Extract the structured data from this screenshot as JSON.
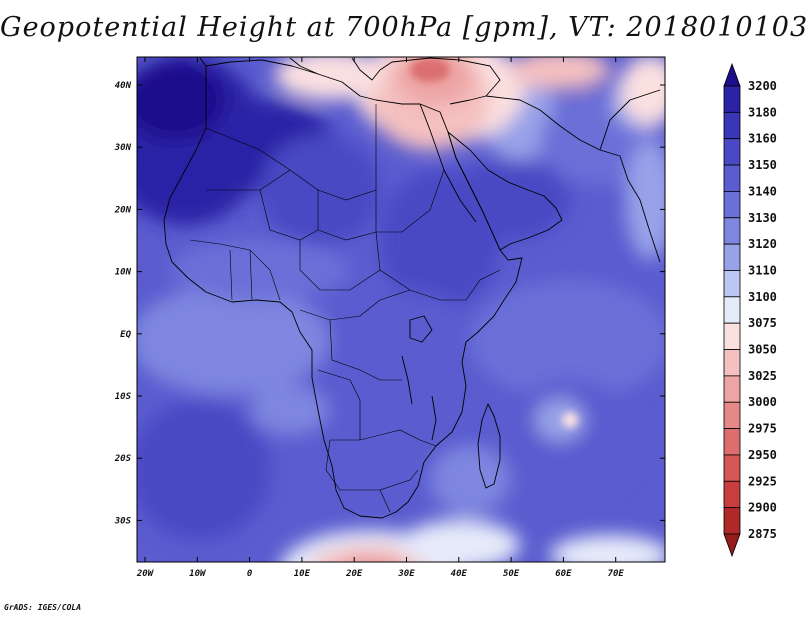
{
  "title": "Geopotential Height at 700hPa [gpm], VT: 2018010103",
  "credit": "GrADS: IGES/COLA",
  "lon_labels": [
    "20W",
    "10W",
    "0",
    "10E",
    "20E",
    "30E",
    "40E",
    "50E",
    "60E",
    "70E"
  ],
  "lat_labels": [
    "40N",
    "30N",
    "20N",
    "10N",
    "EQ",
    "10S",
    "20S",
    "30S"
  ],
  "colorbar": {
    "levels": [
      "3200",
      "3180",
      "3160",
      "3150",
      "3140",
      "3130",
      "3120",
      "3110",
      "3100",
      "3075",
      "3050",
      "3025",
      "3000",
      "2975",
      "2950",
      "2925",
      "2900",
      "2875"
    ],
    "colors": [
      "#1e0d8c",
      "#2c22a6",
      "#3a36b8",
      "#4a48c4",
      "#5a5ccf",
      "#6a70d8",
      "#7e86e0",
      "#98a2e8",
      "#bcc6f2",
      "#e6ebfa",
      "#fbe0e0",
      "#f4c0c0",
      "#eda4a4",
      "#e48888",
      "#dc6e6e",
      "#d45656",
      "#c83e3e",
      "#b02828",
      "#961c1c"
    ]
  }
}
